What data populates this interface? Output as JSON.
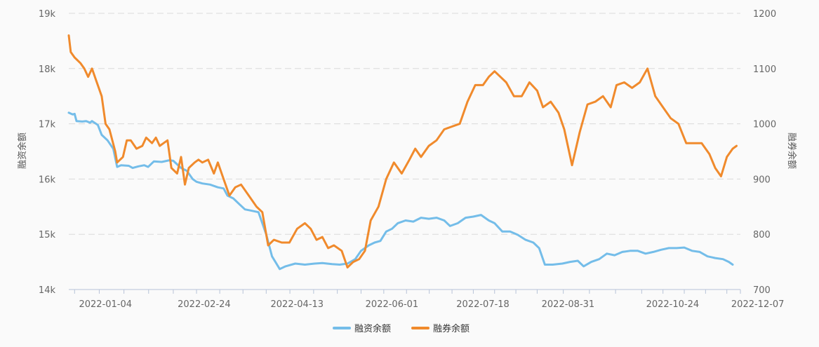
{
  "chart_data": {
    "type": "line",
    "title": "",
    "legend_position": "bottom-center",
    "grid": true,
    "left_axis": {
      "label": "融资余额",
      "ticks": [
        "14k",
        "15k",
        "16k",
        "17k",
        "18k",
        "19k"
      ],
      "ylim": [
        14000,
        19000
      ]
    },
    "right_axis": {
      "label": "融券余额",
      "ticks": [
        "700",
        "800",
        "900",
        "1000",
        "1100",
        "1200"
      ],
      "ylim": [
        700,
        1200
      ]
    },
    "x_ticks": [
      "2022-01-04",
      "2022-02-24",
      "2022-04-13",
      "2022-06-01",
      "2022-07-18",
      "2022-08-31",
      "2022-10-24",
      "2022-12-07"
    ],
    "x_start": "2022-01-01",
    "x_end": "2022-12-14",
    "series": [
      {
        "name": "融资余额",
        "axis": "left",
        "color": "#74bde9",
        "points": [
          [
            "2022-01-01",
            17200
          ],
          [
            "2022-01-03",
            17170
          ],
          [
            "2022-01-04",
            17180
          ],
          [
            "2022-01-05",
            17050
          ],
          [
            "2022-01-08",
            17040
          ],
          [
            "2022-01-10",
            17050
          ],
          [
            "2022-01-12",
            17020
          ],
          [
            "2022-01-13",
            17050
          ],
          [
            "2022-01-16",
            16980
          ],
          [
            "2022-01-18",
            16800
          ],
          [
            "2022-01-21",
            16700
          ],
          [
            "2022-01-24",
            16550
          ],
          [
            "2022-01-26",
            16220
          ],
          [
            "2022-01-28",
            16250
          ],
          [
            "2022-02-01",
            16240
          ],
          [
            "2022-02-03",
            16200
          ],
          [
            "2022-02-06",
            16230
          ],
          [
            "2022-02-09",
            16250
          ],
          [
            "2022-02-11",
            16220
          ],
          [
            "2022-02-14",
            16320
          ],
          [
            "2022-02-18",
            16310
          ],
          [
            "2022-02-22",
            16340
          ],
          [
            "2022-02-24",
            16330
          ],
          [
            "2022-02-28",
            16200
          ],
          [
            "2022-03-03",
            16150
          ],
          [
            "2022-03-06",
            16000
          ],
          [
            "2022-03-08",
            15950
          ],
          [
            "2022-03-11",
            15920
          ],
          [
            "2022-03-15",
            15900
          ],
          [
            "2022-03-19",
            15850
          ],
          [
            "2022-03-22",
            15830
          ],
          [
            "2022-03-24",
            15700
          ],
          [
            "2022-03-27",
            15650
          ],
          [
            "2022-03-30",
            15550
          ],
          [
            "2022-04-02",
            15450
          ],
          [
            "2022-04-05",
            15430
          ],
          [
            "2022-04-09",
            15400
          ],
          [
            "2022-04-13",
            15000
          ],
          [
            "2022-04-16",
            14600
          ],
          [
            "2022-04-20",
            14370
          ],
          [
            "2022-04-23",
            14420
          ],
          [
            "2022-04-28",
            14470
          ],
          [
            "2022-05-03",
            14450
          ],
          [
            "2022-05-08",
            14470
          ],
          [
            "2022-05-12",
            14480
          ],
          [
            "2022-05-17",
            14460
          ],
          [
            "2022-05-21",
            14450
          ],
          [
            "2022-05-25",
            14470
          ],
          [
            "2022-05-29",
            14550
          ],
          [
            "2022-06-01",
            14700
          ],
          [
            "2022-06-05",
            14800
          ],
          [
            "2022-06-08",
            14850
          ],
          [
            "2022-06-11",
            14880
          ],
          [
            "2022-06-14",
            15050
          ],
          [
            "2022-06-17",
            15100
          ],
          [
            "2022-06-20",
            15200
          ],
          [
            "2022-06-24",
            15250
          ],
          [
            "2022-06-28",
            15230
          ],
          [
            "2022-07-02",
            15300
          ],
          [
            "2022-07-06",
            15280
          ],
          [
            "2022-07-10",
            15300
          ],
          [
            "2022-07-14",
            15250
          ],
          [
            "2022-07-17",
            15150
          ],
          [
            "2022-07-21",
            15200
          ],
          [
            "2022-07-25",
            15300
          ],
          [
            "2022-07-29",
            15320
          ],
          [
            "2022-08-02",
            15350
          ],
          [
            "2022-08-06",
            15250
          ],
          [
            "2022-08-09",
            15200
          ],
          [
            "2022-08-13",
            15050
          ],
          [
            "2022-08-17",
            15050
          ],
          [
            "2022-08-21",
            14990
          ],
          [
            "2022-08-25",
            14900
          ],
          [
            "2022-08-29",
            14850
          ],
          [
            "2022-09-01",
            14750
          ],
          [
            "2022-09-04",
            14450
          ],
          [
            "2022-09-08",
            14450
          ],
          [
            "2022-09-13",
            14470
          ],
          [
            "2022-09-17",
            14500
          ],
          [
            "2022-09-21",
            14520
          ],
          [
            "2022-09-24",
            14420
          ],
          [
            "2022-09-28",
            14500
          ],
          [
            "2022-10-02",
            14550
          ],
          [
            "2022-10-06",
            14650
          ],
          [
            "2022-10-10",
            14620
          ],
          [
            "2022-10-14",
            14680
          ],
          [
            "2022-10-18",
            14700
          ],
          [
            "2022-10-22",
            14700
          ],
          [
            "2022-10-26",
            14650
          ],
          [
            "2022-10-30",
            14680
          ],
          [
            "2022-11-03",
            14720
          ],
          [
            "2022-11-07",
            14750
          ],
          [
            "2022-11-11",
            14750
          ],
          [
            "2022-11-15",
            14760
          ],
          [
            "2022-11-19",
            14700
          ],
          [
            "2022-11-23",
            14680
          ],
          [
            "2022-11-27",
            14600
          ],
          [
            "2022-12-01",
            14570
          ],
          [
            "2022-12-05",
            14550
          ],
          [
            "2022-12-08",
            14500
          ],
          [
            "2022-12-10",
            14450
          ]
        ]
      },
      {
        "name": "融券余额",
        "axis": "right",
        "color": "#f08a2c",
        "points": [
          [
            "2022-01-01",
            1160
          ],
          [
            "2022-01-02",
            1130
          ],
          [
            "2022-01-04",
            1120
          ],
          [
            "2022-01-07",
            1110
          ],
          [
            "2022-01-09",
            1100
          ],
          [
            "2022-01-11",
            1085
          ],
          [
            "2022-01-13",
            1100
          ],
          [
            "2022-01-15",
            1080
          ],
          [
            "2022-01-18",
            1050
          ],
          [
            "2022-01-20",
            1000
          ],
          [
            "2022-01-22",
            990
          ],
          [
            "2022-01-25",
            950
          ],
          [
            "2022-01-26",
            930
          ],
          [
            "2022-01-29",
            940
          ],
          [
            "2022-01-31",
            970
          ],
          [
            "2022-02-02",
            970
          ],
          [
            "2022-02-05",
            955
          ],
          [
            "2022-02-08",
            960
          ],
          [
            "2022-02-10",
            975
          ],
          [
            "2022-02-13",
            965
          ],
          [
            "2022-02-15",
            975
          ],
          [
            "2022-02-17",
            960
          ],
          [
            "2022-02-19",
            965
          ],
          [
            "2022-02-21",
            970
          ],
          [
            "2022-02-23",
            920
          ],
          [
            "2022-02-26",
            910
          ],
          [
            "2022-02-28",
            940
          ],
          [
            "2022-03-02",
            890
          ],
          [
            "2022-03-04",
            920
          ],
          [
            "2022-03-07",
            930
          ],
          [
            "2022-03-09",
            935
          ],
          [
            "2022-03-11",
            930
          ],
          [
            "2022-03-14",
            935
          ],
          [
            "2022-03-17",
            910
          ],
          [
            "2022-03-19",
            930
          ],
          [
            "2022-03-22",
            900
          ],
          [
            "2022-03-25",
            870
          ],
          [
            "2022-03-28",
            885
          ],
          [
            "2022-03-31",
            890
          ],
          [
            "2022-04-04",
            870
          ],
          [
            "2022-04-08",
            850
          ],
          [
            "2022-04-11",
            840
          ],
          [
            "2022-04-14",
            780
          ],
          [
            "2022-04-17",
            790
          ],
          [
            "2022-04-21",
            785
          ],
          [
            "2022-04-25",
            785
          ],
          [
            "2022-04-29",
            810
          ],
          [
            "2022-05-03",
            820
          ],
          [
            "2022-05-06",
            810
          ],
          [
            "2022-05-09",
            790
          ],
          [
            "2022-05-12",
            795
          ],
          [
            "2022-05-15",
            775
          ],
          [
            "2022-05-18",
            780
          ],
          [
            "2022-05-22",
            770
          ],
          [
            "2022-05-25",
            740
          ],
          [
            "2022-05-28",
            750
          ],
          [
            "2022-05-31",
            755
          ],
          [
            "2022-06-03",
            770
          ],
          [
            "2022-06-06",
            825
          ],
          [
            "2022-06-10",
            850
          ],
          [
            "2022-06-14",
            900
          ],
          [
            "2022-06-18",
            930
          ],
          [
            "2022-06-22",
            910
          ],
          [
            "2022-06-26",
            935
          ],
          [
            "2022-06-29",
            955
          ],
          [
            "2022-07-02",
            940
          ],
          [
            "2022-07-06",
            960
          ],
          [
            "2022-07-10",
            970
          ],
          [
            "2022-07-14",
            990
          ],
          [
            "2022-07-18",
            995
          ],
          [
            "2022-07-22",
            1000
          ],
          [
            "2022-07-26",
            1040
          ],
          [
            "2022-07-30",
            1070
          ],
          [
            "2022-08-03",
            1070
          ],
          [
            "2022-08-06",
            1085
          ],
          [
            "2022-08-09",
            1095
          ],
          [
            "2022-08-12",
            1085
          ],
          [
            "2022-08-15",
            1075
          ],
          [
            "2022-08-19",
            1050
          ],
          [
            "2022-08-23",
            1050
          ],
          [
            "2022-08-27",
            1075
          ],
          [
            "2022-08-31",
            1060
          ],
          [
            "2022-09-03",
            1030
          ],
          [
            "2022-09-07",
            1040
          ],
          [
            "2022-09-11",
            1020
          ],
          [
            "2022-09-14",
            990
          ],
          [
            "2022-09-18",
            925
          ],
          [
            "2022-09-22",
            985
          ],
          [
            "2022-09-26",
            1035
          ],
          [
            "2022-09-30",
            1040
          ],
          [
            "2022-10-04",
            1050
          ],
          [
            "2022-10-08",
            1030
          ],
          [
            "2022-10-11",
            1070
          ],
          [
            "2022-10-15",
            1075
          ],
          [
            "2022-10-19",
            1065
          ],
          [
            "2022-10-23",
            1075
          ],
          [
            "2022-10-27",
            1100
          ],
          [
            "2022-10-31",
            1050
          ],
          [
            "2022-11-04",
            1030
          ],
          [
            "2022-11-08",
            1010
          ],
          [
            "2022-11-12",
            1000
          ],
          [
            "2022-11-16",
            965
          ],
          [
            "2022-11-20",
            965
          ],
          [
            "2022-11-24",
            965
          ],
          [
            "2022-11-28",
            945
          ],
          [
            "2022-12-01",
            920
          ],
          [
            "2022-12-04",
            905
          ],
          [
            "2022-12-07",
            940
          ],
          [
            "2022-12-10",
            955
          ],
          [
            "2022-12-12",
            960
          ]
        ]
      }
    ]
  }
}
